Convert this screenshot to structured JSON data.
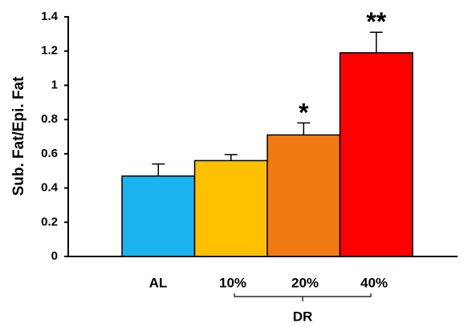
{
  "chart_data": {
    "type": "bar",
    "ylabel": "Sub. Fat/Epi. Fat",
    "categories": [
      "AL",
      "10%",
      "20%",
      "40%"
    ],
    "values": [
      0.47,
      0.56,
      0.71,
      1.19
    ],
    "errors": [
      0.07,
      0.035,
      0.07,
      0.12
    ],
    "colors": [
      "#1ab3f0",
      "#ffc000",
      "#f07a13",
      "#ff0000"
    ],
    "annotations": [
      null,
      null,
      "*",
      "**"
    ],
    "group_label": "DR",
    "ylim": [
      0,
      1.4
    ],
    "yticks": [
      0,
      0.2,
      0.4,
      0.6,
      0.8,
      1,
      1.2,
      1.4
    ],
    "grid": false
  }
}
